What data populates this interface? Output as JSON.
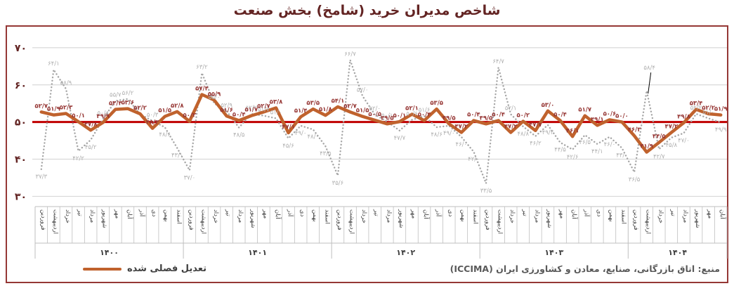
{
  "title": "شاخص مدیران خرید (شامخ) بخش صنعت",
  "legend": {
    "adjusted_label": "تعدیل فصلی شده"
  },
  "source": "منبع: اتاق بازرگانی، صنایع، معادن و کشاورزی ایران (ICCIMA)",
  "colors": {
    "frame_border": "#953735",
    "title": "#632423",
    "axis_tick": "#632423",
    "gridline": "#d9d9d9",
    "reference_line": "#c00000",
    "adjusted_line": "#c0622d",
    "adjusted_label": "#963634",
    "raw_line": "#a6a6a6",
    "raw_label": "#b0b0b0",
    "table_line": "#bfbfbf",
    "month_text": "#404040",
    "year_text": "#404040"
  },
  "chart_data": {
    "type": "line",
    "title": "شاخص مدیران خرید (شامخ) بخش صنعت",
    "ylim": [
      28,
      73
    ],
    "y_ticks": [
      30,
      40,
      50,
      60,
      70
    ],
    "y_tick_labels_fa": [
      "۳۰",
      "۴۰",
      "۵۰",
      "۶۰",
      "۷۰"
    ],
    "reference_line": 50,
    "grid": true,
    "legend_position": "bottom-left",
    "months_fa": [
      "فروردین",
      "اردیبهشت",
      "خرداد",
      "تیر",
      "مرداد",
      "شهریور",
      "مهر",
      "آبان",
      "آذر",
      "دی",
      "بهمن",
      "اسفند"
    ],
    "years": [
      {
        "label": "۱۴۰۰",
        "n_months": 12
      },
      {
        "label": "۱۴۰۱",
        "n_months": 12
      },
      {
        "label": "۱۴۰۲",
        "n_months": 12
      },
      {
        "label": "۱۴۰۳",
        "n_months": 12
      },
      {
        "label": "۱۴۰۴",
        "n_months": 8
      }
    ],
    "series": [
      {
        "id": "seasonally-adjusted",
        "name": "تعدیل فصلی شده",
        "style": "solid",
        "values": [
          52.7,
          51.9,
          52.3,
          50.1,
          47.8,
          49.9,
          53.4,
          53.6,
          52.2,
          48.3,
          51.5,
          52.8,
          50.2,
          57.4,
          55.9,
          51.6,
          50.4,
          51.7,
          52.7,
          53.8,
          47.1,
          51.4,
          53.5,
          51.8,
          54.1,
          52.7,
          51.5,
          50.5,
          49.5,
          50.1,
          52.1,
          50.4,
          53.5,
          49.5,
          47.2,
          50.4,
          49.5,
          50.4,
          47.2,
          50.2,
          47.7,
          53.0,
          50.4,
          46.1,
          51.7,
          49.1,
          50.6,
          50.0,
          46.3,
          41.9,
          44.5,
          47.2,
          49.8,
          53.4,
          52.2,
          51.9
        ]
      },
      {
        "id": "unadjusted",
        "name": "",
        "style": "dotted",
        "callout_index": 49,
        "values": [
          37.3,
          64.1,
          58.9,
          42.2,
          45.2,
          50.8,
          55.7,
          56.2,
          52.1,
          50.3,
          48.6,
          43.0,
          37.0,
          63.2,
          55.0,
          52.9,
          48.5,
          52.2,
          51.7,
          51.0,
          45.6,
          49.0,
          48.0,
          43.5,
          35.6,
          66.7,
          57.0,
          52.0,
          50.1,
          47.7,
          50.6,
          51.6,
          48.6,
          49.0,
          46.0,
          42.0,
          33.5,
          64.7,
          52.1,
          48.8,
          46.2,
          49.2,
          44.5,
          42.6,
          46.5,
          44.1,
          46.0,
          43.0,
          36.5,
          58.4,
          42.7,
          45.8,
          47.0,
          52.2,
          51.0,
          49.9
        ]
      }
    ]
  }
}
